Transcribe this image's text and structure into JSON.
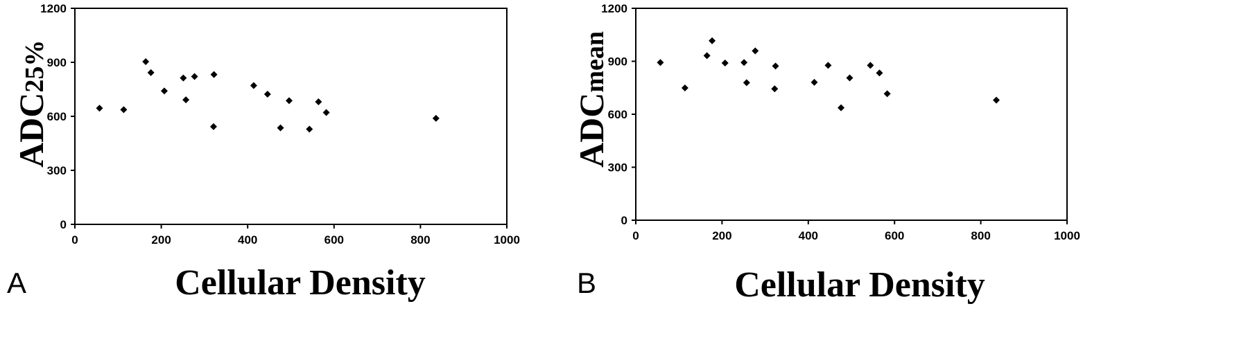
{
  "chart_data": [
    {
      "type": "scatter",
      "panel_label": "A",
      "xlabel": "Cellular Density",
      "ylabel_main": "ADC",
      "ylabel_sub": "25%",
      "xlim": [
        0,
        1000
      ],
      "ylim": [
        0,
        1200
      ],
      "xticks": [
        0,
        200,
        400,
        600,
        800,
        1000
      ],
      "yticks": [
        0,
        300,
        600,
        900,
        1200
      ],
      "grid": false,
      "marker": "diamond",
      "color": "#000000",
      "points": [
        {
          "x": 57,
          "y": 645
        },
        {
          "x": 113,
          "y": 637
        },
        {
          "x": 164,
          "y": 904
        },
        {
          "x": 176,
          "y": 843
        },
        {
          "x": 207,
          "y": 741
        },
        {
          "x": 251,
          "y": 813
        },
        {
          "x": 257,
          "y": 692
        },
        {
          "x": 277,
          "y": 821
        },
        {
          "x": 322,
          "y": 832
        },
        {
          "x": 321,
          "y": 543
        },
        {
          "x": 414,
          "y": 771
        },
        {
          "x": 446,
          "y": 723
        },
        {
          "x": 476,
          "y": 536
        },
        {
          "x": 496,
          "y": 687
        },
        {
          "x": 543,
          "y": 529
        },
        {
          "x": 564,
          "y": 681
        },
        {
          "x": 582,
          "y": 621
        },
        {
          "x": 836,
          "y": 589
        }
      ]
    },
    {
      "type": "scatter",
      "panel_label": "B",
      "xlabel": "Cellular Density",
      "ylabel_main": "ADC",
      "ylabel_sub": "mean",
      "xlim": [
        0,
        1000
      ],
      "ylim": [
        0,
        1200
      ],
      "xticks": [
        0,
        200,
        400,
        600,
        800,
        1000
      ],
      "yticks": [
        0,
        300,
        600,
        900,
        1200
      ],
      "grid": false,
      "marker": "diamond",
      "color": "#000000",
      "points": [
        {
          "x": 57,
          "y": 893
        },
        {
          "x": 114,
          "y": 749
        },
        {
          "x": 165,
          "y": 932
        },
        {
          "x": 177,
          "y": 1016
        },
        {
          "x": 207,
          "y": 890
        },
        {
          "x": 251,
          "y": 893
        },
        {
          "x": 257,
          "y": 779
        },
        {
          "x": 277,
          "y": 959
        },
        {
          "x": 322,
          "y": 744
        },
        {
          "x": 324,
          "y": 873
        },
        {
          "x": 414,
          "y": 781
        },
        {
          "x": 446,
          "y": 877
        },
        {
          "x": 476,
          "y": 637
        },
        {
          "x": 496,
          "y": 806
        },
        {
          "x": 544,
          "y": 877
        },
        {
          "x": 565,
          "y": 834
        },
        {
          "x": 583,
          "y": 716
        },
        {
          "x": 836,
          "y": 680
        }
      ]
    }
  ]
}
